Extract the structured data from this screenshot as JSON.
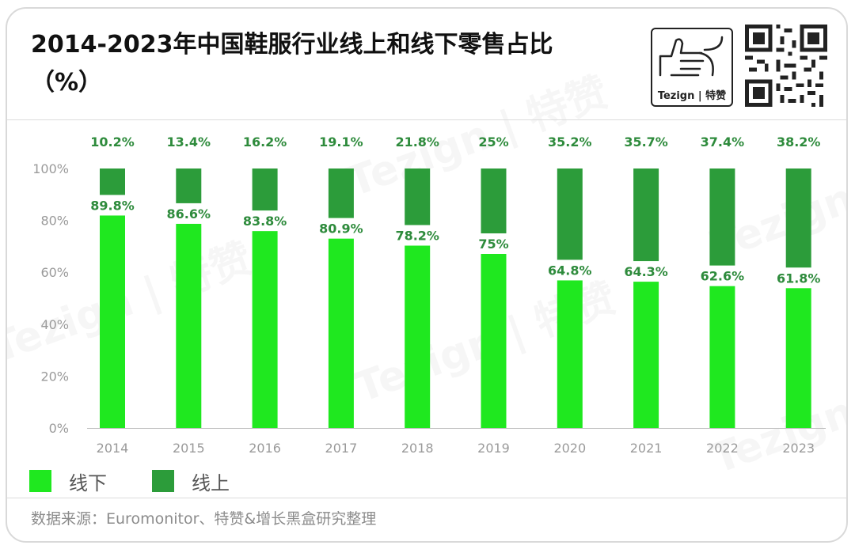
{
  "title": "2014-2023年中国鞋服行业线上和线下零售占比（%）",
  "logo_text": "Tezign | 特赞",
  "watermark_text": "Tezign | 特赞",
  "source": "数据来源：Euromonitor、特赞&增长黑盒研究整理",
  "colors": {
    "offline": "#1fe81f",
    "online": "#2c9c3a",
    "label_green": "#2e8b3c",
    "axis_text": "#9a9a9a"
  },
  "chart_data": {
    "type": "bar",
    "stacked": true,
    "categories": [
      "2014",
      "2015",
      "2016",
      "2017",
      "2018",
      "2019",
      "2020",
      "2021",
      "2022",
      "2023"
    ],
    "series": [
      {
        "name": "线下",
        "values": [
          89.8,
          86.6,
          83.8,
          80.9,
          78.2,
          75,
          64.8,
          64.3,
          62.6,
          61.8
        ],
        "labels": [
          "89.8%",
          "86.6%",
          "83.8%",
          "80.9%",
          "78.2%",
          "75%",
          "64.8%",
          "64.3%",
          "62.6%",
          "61.8%"
        ]
      },
      {
        "name": "线上",
        "values": [
          10.2,
          13.4,
          16.2,
          19.1,
          21.8,
          25,
          35.2,
          35.7,
          37.4,
          38.2
        ],
        "labels": [
          "10.2%",
          "13.4%",
          "16.2%",
          "19.1%",
          "21.8%",
          "25%",
          "35.2%",
          "35.7%",
          "37.4%",
          "38.2%"
        ]
      }
    ],
    "y_ticks": [
      "0%",
      "20%",
      "40%",
      "60%",
      "80%",
      "100%"
    ],
    "ylim": [
      0,
      100
    ],
    "grid": false,
    "legend_position": "bottom-left"
  }
}
